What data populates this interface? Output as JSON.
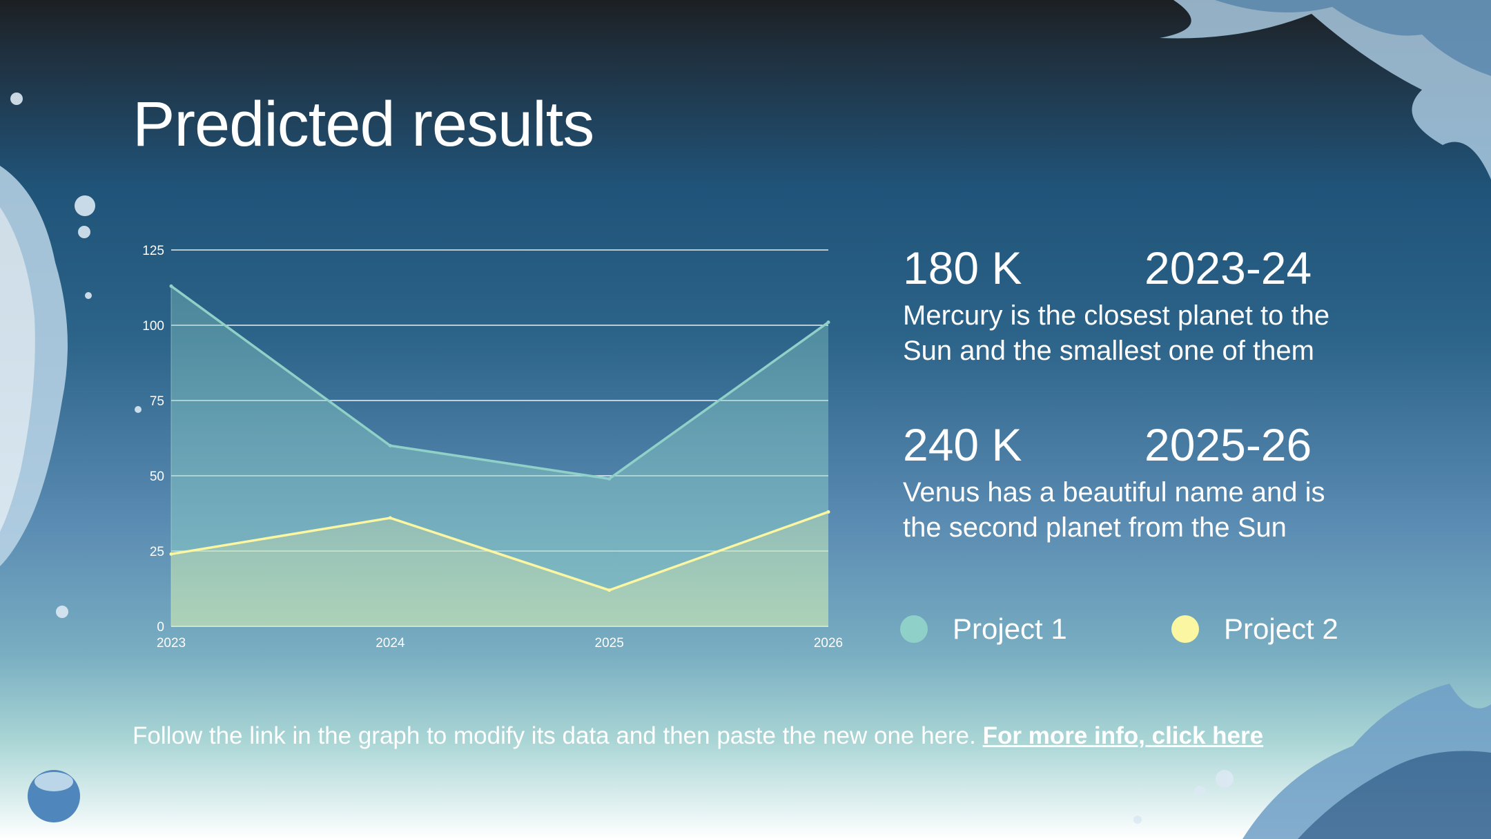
{
  "slide": {
    "title": "Predicted results",
    "footer_text": "Follow the link in the graph to modify its data and then paste the new one here.",
    "footer_link": "For more info, click here"
  },
  "stats": [
    {
      "value": "180 K",
      "period": "2023-24",
      "description": "Mercury is the closest planet to the Sun and the smallest one of them"
    },
    {
      "value": "240 K",
      "period": "2025-26",
      "description": "Venus has a beautiful name and is the second planet from the Sun"
    }
  ],
  "legend": [
    {
      "label": "Project 1",
      "color": "#8fd1c8"
    },
    {
      "label": "Project 2",
      "color": "#fbf6a2"
    }
  ],
  "chart_data": {
    "type": "area",
    "categories": [
      "2023",
      "2024",
      "2025",
      "2026"
    ],
    "series": [
      {
        "name": "Project 1",
        "values": [
          113,
          60,
          49,
          101
        ],
        "color": "#8fd1c8"
      },
      {
        "name": "Project 2",
        "values": [
          24,
          36,
          12,
          38
        ],
        "color": "#fbf6a2"
      }
    ],
    "ylim": [
      0,
      125
    ],
    "yticks": [
      "0",
      "25",
      "50",
      "75",
      "100",
      "125"
    ],
    "grid": true,
    "title": "",
    "xlabel": "",
    "ylabel": ""
  }
}
